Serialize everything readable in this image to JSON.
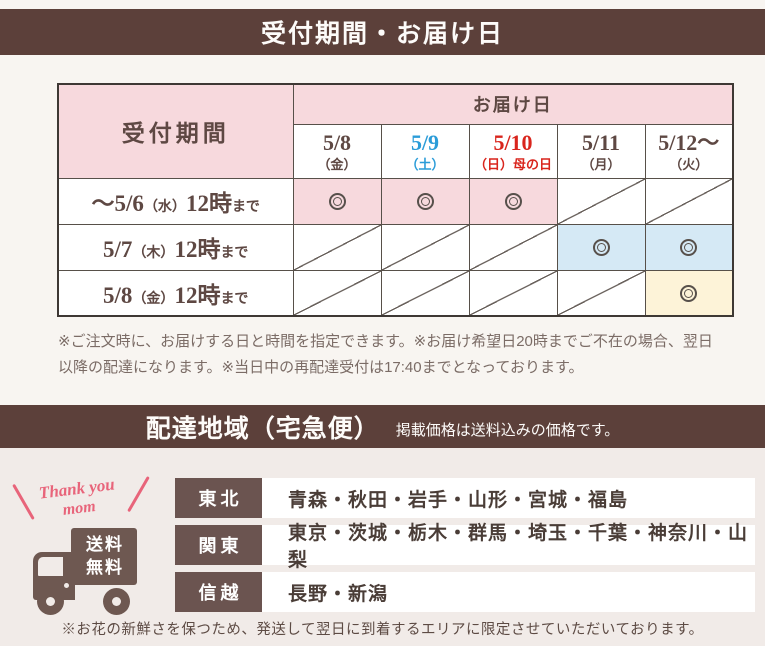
{
  "colors": {
    "page_bg": "#f8f5f1",
    "band_brown": "#5c403a",
    "band_text": "#fdfbf9",
    "pink": "#f7d9dd",
    "blue": "#d5e9f5",
    "yellow": "#fdf3d8",
    "white": "#ffffff",
    "border_dark": "#3e3834",
    "border_inner": "#575049",
    "text_brown": "#5e4843",
    "date_saturday": "#2b9cd8",
    "date_sunday": "#d9251d",
    "note_text": "#7b6c66",
    "slash_line": "#6b635e",
    "circle_mark": "#57504b",
    "section2_bg": "#f1ebe8",
    "region_label_bg": "#6b5450",
    "region_text": "#4a3d37",
    "truck_brown": "#6e5851",
    "handwriting_pink": "#e8647a"
  },
  "header1": {
    "title": "受付期間・お届け日"
  },
  "schedule_table": {
    "corner_label": "受付期間",
    "delivery_header": "お届け日",
    "date_columns": [
      {
        "date": "5/8",
        "day": "（金）",
        "color_key": "text_brown"
      },
      {
        "date": "5/9",
        "day": "（土）",
        "color_key": "date_saturday"
      },
      {
        "date": "5/10",
        "day": "（日）母の日",
        "color_key": "date_sunday"
      },
      {
        "date": "5/11",
        "day": "（月）",
        "color_key": "text_brown"
      },
      {
        "date": "5/12～",
        "day": "（火）",
        "color_key": "text_brown"
      }
    ],
    "rows": [
      {
        "label_parts": [
          {
            "text": "～5/6",
            "size": "big"
          },
          {
            "text": "（水）",
            "size": "small"
          },
          {
            "text": "12時",
            "size": "big"
          },
          {
            "text": "まで",
            "size": "small"
          }
        ],
        "cells": [
          {
            "mark": "circle",
            "bg": "pink"
          },
          {
            "mark": "circle",
            "bg": "pink"
          },
          {
            "mark": "circle",
            "bg": "pink"
          },
          {
            "mark": "slash",
            "bg": "white"
          },
          {
            "mark": "slash",
            "bg": "white"
          }
        ]
      },
      {
        "label_parts": [
          {
            "text": "5/7",
            "size": "big"
          },
          {
            "text": "（木）",
            "size": "small"
          },
          {
            "text": "12時",
            "size": "big"
          },
          {
            "text": "まで",
            "size": "small"
          }
        ],
        "cells": [
          {
            "mark": "slash",
            "bg": "white"
          },
          {
            "mark": "slash",
            "bg": "white"
          },
          {
            "mark": "slash",
            "bg": "white"
          },
          {
            "mark": "circle",
            "bg": "blue"
          },
          {
            "mark": "circle",
            "bg": "blue"
          }
        ]
      },
      {
        "label_parts": [
          {
            "text": "5/8",
            "size": "big"
          },
          {
            "text": "（金）",
            "size": "small"
          },
          {
            "text": "12時",
            "size": "big"
          },
          {
            "text": "まで",
            "size": "small"
          }
        ],
        "cells": [
          {
            "mark": "slash",
            "bg": "white"
          },
          {
            "mark": "slash",
            "bg": "white"
          },
          {
            "mark": "slash",
            "bg": "white"
          },
          {
            "mark": "slash",
            "bg": "white"
          },
          {
            "mark": "circle",
            "bg": "yellow"
          }
        ]
      }
    ]
  },
  "notes": {
    "schedule": "※ご注文時に、お届けする日と時間を指定できます。※お届け希望日20時までご不在の場合、翌日以降の配達になります。※当日中の再配達受付は17:40までとなっております。",
    "area": "※お花の新鮮さを保つため、発送して翌日に到着するエリアに限定させていただいております。"
  },
  "header2": {
    "title": "配達地域（宅急便）",
    "subtitle": "掲載価格は送料込みの価格です。"
  },
  "truck": {
    "handwriting_line1": "Thank you",
    "handwriting_line2": "mom",
    "badge_line1": "送料",
    "badge_line2": "無料"
  },
  "regions": [
    {
      "name": "東北",
      "prefectures": "青森・秋田・岩手・山形・宮城・福島"
    },
    {
      "name": "関東",
      "prefectures": "東京・茨城・栃木・群馬・埼玉・千葉・神奈川・山梨"
    },
    {
      "name": "信越",
      "prefectures": "長野・新潟"
    }
  ]
}
